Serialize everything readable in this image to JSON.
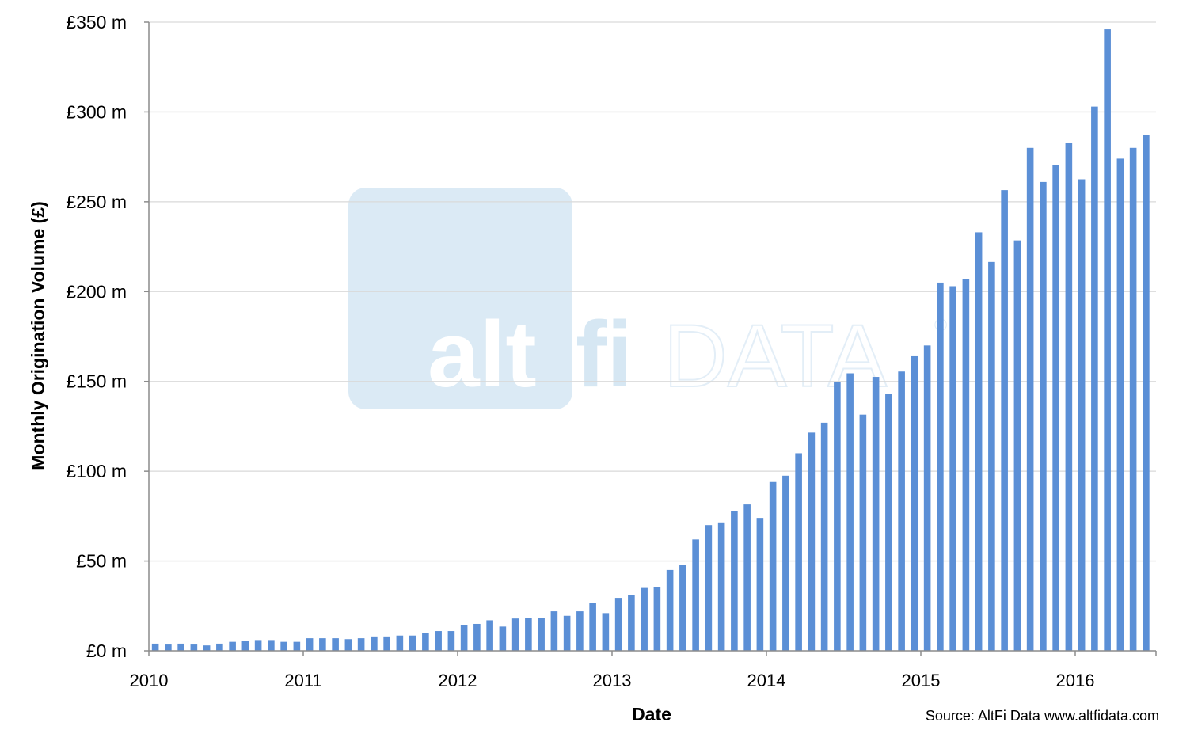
{
  "chart_data": {
    "type": "bar",
    "title": "",
    "xlabel": "Date",
    "ylabel": "Monthly Origination Volume (£)",
    "source": "Source: AltFi Data www.altfidata.com",
    "ylim": [
      0,
      350
    ],
    "y_unit": "£ m",
    "yticks": [
      {
        "value": 0,
        "label": "£0 m"
      },
      {
        "value": 50,
        "label": "£50 m"
      },
      {
        "value": 100,
        "label": "£100 m"
      },
      {
        "value": 150,
        "label": "£150 m"
      },
      {
        "value": 200,
        "label": "£200 m"
      },
      {
        "value": 250,
        "label": "£250 m"
      },
      {
        "value": 300,
        "label": "£300 m"
      },
      {
        "value": 350,
        "label": "£350 m"
      }
    ],
    "xticks": [
      "2010",
      "2011",
      "2012",
      "2013",
      "2014",
      "2015",
      "2016"
    ],
    "x_start": "2010-01",
    "grid": true,
    "legend": "none",
    "bar_color": "#5b8fd6",
    "watermark": {
      "part1": "alt",
      "part2": "fi",
      "part3": "DATA",
      "mark": "®"
    },
    "values": [
      4,
      3.5,
      4,
      3.5,
      3,
      4,
      5,
      5.5,
      6,
      6,
      5,
      5,
      7,
      7,
      7,
      6.5,
      7,
      8,
      8,
      8.5,
      8.5,
      10,
      11,
      11,
      14.5,
      15,
      17,
      13.5,
      18,
      18.5,
      18.5,
      22,
      19.5,
      22,
      26.5,
      21,
      29.5,
      31,
      35,
      35.5,
      45,
      48,
      62,
      70,
      71.5,
      78,
      81.5,
      74,
      94,
      97.5,
      110,
      121.5,
      127,
      149.5,
      154.5,
      131.5,
      152.5,
      143,
      155.5,
      164,
      170,
      205,
      203,
      207,
      233,
      216.5,
      256.5,
      228.5,
      280,
      261,
      270.5,
      283,
      262.5,
      303,
      346,
      274,
      280,
      287
    ]
  }
}
